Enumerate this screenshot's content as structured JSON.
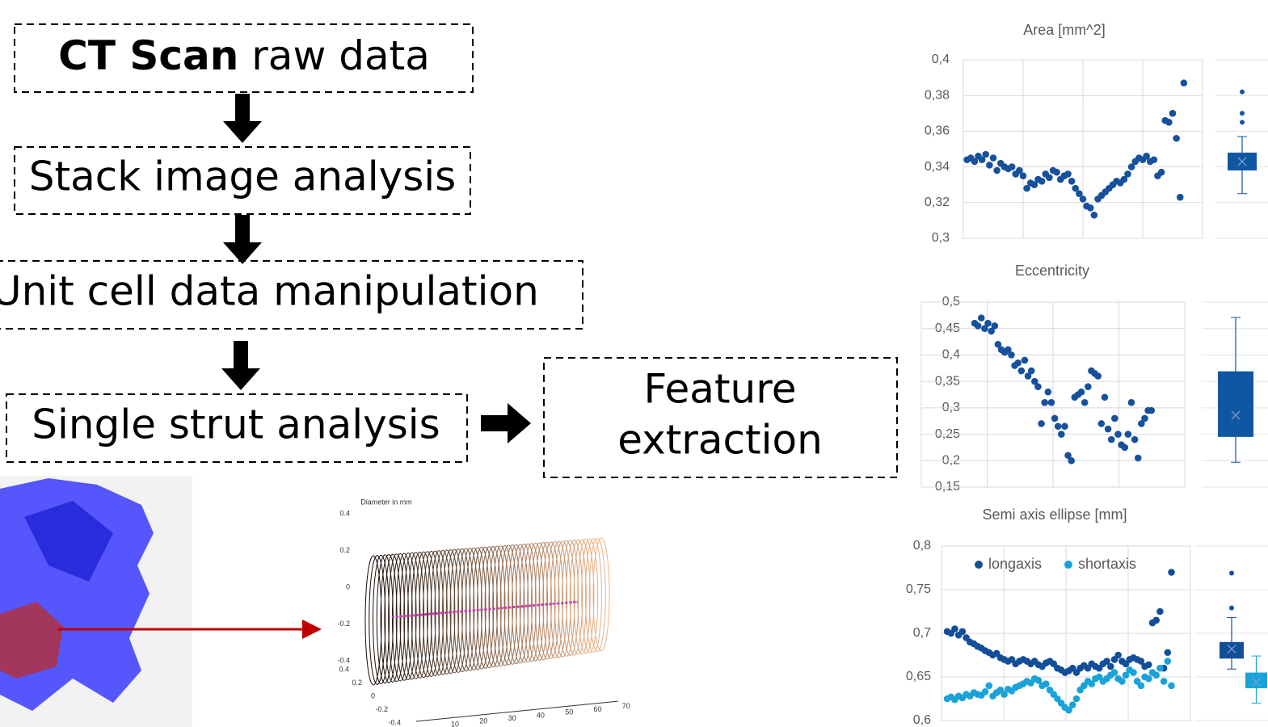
{
  "flowchart": {
    "nodes": [
      {
        "bold": "CT Scan",
        "text": "raw data"
      },
      {
        "text": "Stack image analysis"
      },
      {
        "text": "Unit cell data manipulation"
      },
      {
        "text": "Single strut analysis"
      },
      {
        "lines": [
          "Feature",
          "extraction"
        ]
      }
    ]
  },
  "strut_plot": {
    "title": "Diameter in mm",
    "zticks": [
      0.4,
      0.2,
      0,
      -0.2,
      -0.4
    ],
    "yticks": [
      0.4,
      0.2,
      0,
      -0.2,
      -0.4
    ],
    "xticks": [
      10,
      20,
      30,
      40,
      50,
      60,
      70
    ]
  },
  "chart_data": [
    {
      "type": "scatter",
      "title": "Area [mm^2]",
      "xlim": [
        -1,
        63
      ],
      "ylim": [
        0.3,
        0.4
      ],
      "yticks": [
        {
          "value": 0.3,
          "label": "0,3"
        },
        {
          "value": 0.32,
          "label": "0,32"
        },
        {
          "value": 0.34,
          "label": "0,34"
        },
        {
          "value": 0.36,
          "label": "0,36"
        },
        {
          "value": 0.38,
          "label": "0,38"
        },
        {
          "value": 0.4,
          "label": "0,4"
        }
      ],
      "grid": true,
      "series": [
        {
          "color": "#17519c",
          "values": [
            0.344,
            0.345,
            0.343,
            0.346,
            0.344,
            0.347,
            0.341,
            0.345,
            0.338,
            0.342,
            0.34,
            0.339,
            0.34,
            0.336,
            0.338,
            0.335,
            0.328,
            0.331,
            0.33,
            0.333,
            0.332,
            0.336,
            0.334,
            0.338,
            0.337,
            0.333,
            0.335,
            0.336,
            0.332,
            0.328,
            0.325,
            0.322,
            0.318,
            0.317,
            0.313,
            0.322,
            0.324,
            0.326,
            0.328,
            0.33,
            0.332,
            0.331,
            0.333,
            0.336,
            0.34,
            0.343,
            0.345,
            0.344,
            0.346,
            0.343,
            0.344,
            0.335,
            0.337,
            0.366,
            0.365,
            0.37,
            0.356,
            0.323,
            0.387
          ]
        }
      ],
      "boxes": [
        {
          "color": "#0f57a3",
          "whisker_low": 0.325,
          "q1": 0.338,
          "mean": 0.343,
          "q3": 0.348,
          "whisker_high": 0.357,
          "outliers": [
            0.365,
            0.37,
            0.382
          ]
        }
      ]
    },
    {
      "type": "scatter",
      "title": "Eccentricity",
      "xlim": [
        -16,
        63
      ],
      "ylim": [
        0.15,
        0.5
      ],
      "yticks": [
        {
          "value": 0.15,
          "label": "0,15"
        },
        {
          "value": 0.2,
          "label": "0,2"
        },
        {
          "value": 0.25,
          "label": "0,25"
        },
        {
          "value": 0.3,
          "label": "0,3"
        },
        {
          "value": 0.35,
          "label": "0,35"
        },
        {
          "value": 0.4,
          "label": "0,4"
        },
        {
          "value": 0.45,
          "label": "0,45"
        },
        {
          "value": 0.5,
          "label": "0,5"
        }
      ],
      "grid": true,
      "series": [
        {
          "color": "#17519c",
          "values": [
            0.46,
            0.455,
            0.47,
            0.45,
            0.46,
            0.445,
            0.455,
            0.42,
            0.41,
            0.405,
            0.41,
            0.4,
            0.38,
            0.385,
            0.37,
            0.39,
            0.36,
            0.37,
            0.35,
            0.34,
            0.27,
            0.31,
            0.33,
            0.31,
            0.28,
            0.265,
            0.25,
            0.265,
            0.21,
            0.2,
            0.32,
            0.325,
            0.33,
            0.31,
            0.34,
            0.37,
            0.365,
            0.36,
            0.27,
            0.32,
            0.26,
            0.24,
            0.28,
            0.25,
            0.23,
            0.225,
            0.25,
            0.31,
            0.24,
            0.205,
            0.27,
            0.28,
            0.295,
            0.295
          ]
        }
      ],
      "boxes": [
        {
          "color": "#0f57a3",
          "whisker_low": 0.197,
          "q1": 0.245,
          "mean": 0.286,
          "q3": 0.369,
          "whisker_high": 0.471,
          "outliers": []
        }
      ]
    },
    {
      "type": "scatter",
      "title": "Semi axis ellipse [mm]",
      "xlim": [
        -1.5,
        64
      ],
      "ylim": [
        0.6,
        0.8
      ],
      "yticks": [
        {
          "value": 0.6,
          "label": "0,6"
        },
        {
          "value": 0.65,
          "label": "0,65"
        },
        {
          "value": 0.7,
          "label": "0,7"
        },
        {
          "value": 0.75,
          "label": "0,75"
        },
        {
          "value": 0.8,
          "label": "0,8"
        }
      ],
      "grid": true,
      "legend": "top-left",
      "series": [
        {
          "name": "longaxis",
          "color": "#134f99",
          "values": [
            0.702,
            0.7,
            0.705,
            0.698,
            0.702,
            0.695,
            0.69,
            0.688,
            0.685,
            0.683,
            0.68,
            0.678,
            0.675,
            0.677,
            0.672,
            0.67,
            0.668,
            0.67,
            0.665,
            0.668,
            0.67,
            0.668,
            0.665,
            0.668,
            0.664,
            0.662,
            0.666,
            0.668,
            0.665,
            0.66,
            0.658,
            0.655,
            0.657,
            0.66,
            0.655,
            0.66,
            0.663,
            0.66,
            0.665,
            0.662,
            0.66,
            0.665,
            0.668,
            0.662,
            0.67,
            0.675,
            0.668,
            0.665,
            0.67,
            0.672,
            0.67,
            0.668,
            0.662,
            0.664,
            0.712,
            0.715,
            0.725,
            0.66,
            0.678,
            0.77
          ]
        },
        {
          "name": "shortaxis",
          "color": "#1aa3d9",
          "values": [
            0.625,
            0.627,
            0.624,
            0.628,
            0.626,
            0.63,
            0.628,
            0.632,
            0.63,
            0.629,
            0.633,
            0.64,
            0.628,
            0.632,
            0.635,
            0.63,
            0.636,
            0.634,
            0.638,
            0.64,
            0.642,
            0.645,
            0.643,
            0.648,
            0.646,
            0.64,
            0.642,
            0.635,
            0.63,
            0.625,
            0.62,
            0.615,
            0.612,
            0.618,
            0.625,
            0.635,
            0.64,
            0.645,
            0.642,
            0.648,
            0.65,
            0.645,
            0.648,
            0.652,
            0.655,
            0.648,
            0.645,
            0.652,
            0.658,
            0.655,
            0.645,
            0.64,
            0.65,
            0.648,
            0.655,
            0.652,
            0.66,
            0.645,
            0.668,
            0.64
          ]
        }
      ],
      "boxes": [
        {
          "color": "#134f99",
          "whisker_low": 0.659,
          "q1": 0.671,
          "mean": 0.682,
          "q3": 0.69,
          "whisker_high": 0.718,
          "outliers": [
            0.729,
            0.769
          ]
        },
        {
          "color": "#1aa3d9",
          "whisker_low": 0.62,
          "q1": 0.637,
          "mean": 0.644,
          "q3": 0.655,
          "whisker_high": 0.674,
          "outliers": []
        }
      ]
    }
  ]
}
